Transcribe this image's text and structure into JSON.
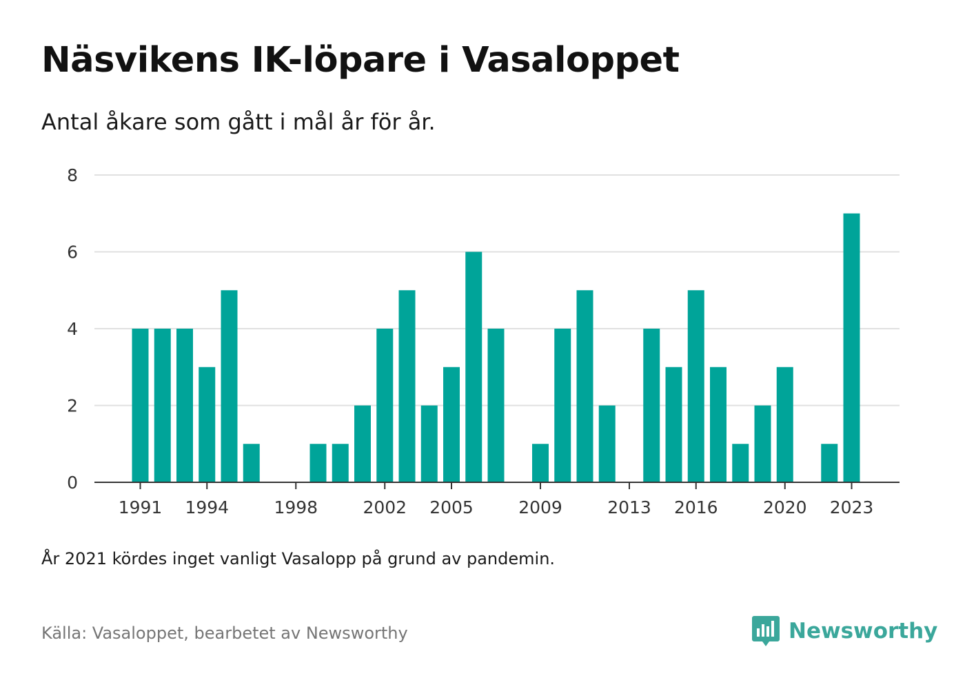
{
  "title": "Näsvikens IK-löpare i Vasaloppet",
  "subtitle": "Antal åkare som gått i mål år för år.",
  "footnote": "År 2021 kördes inget vanligt Vasalopp på grund av pandemin.",
  "source": "Källa: Vasaloppet, bearbetet av Newsworthy",
  "brand": {
    "name": "Newsworthy",
    "icon": "newsworthy-logo-icon"
  },
  "colors": {
    "bar": "#00a499",
    "grid": "#e0e0e0",
    "axis": "#333333",
    "brand": "#3ba79b"
  },
  "chart_data": {
    "type": "bar",
    "categories": [
      "1991",
      "1992",
      "1993",
      "1994",
      "1995",
      "1996",
      "1997",
      "1998",
      "1999",
      "2000",
      "2001",
      "2002",
      "2003",
      "2004",
      "2005",
      "2006",
      "2007",
      "2008",
      "2009",
      "2010",
      "2011",
      "2012",
      "2013",
      "2014",
      "2015",
      "2016",
      "2017",
      "2018",
      "2019",
      "2020",
      "2021",
      "2022",
      "2023"
    ],
    "values": [
      4,
      4,
      4,
      3,
      5,
      1,
      0,
      0,
      1,
      1,
      2,
      4,
      5,
      2,
      3,
      6,
      4,
      0,
      1,
      4,
      5,
      2,
      0,
      4,
      3,
      5,
      3,
      1,
      2,
      3,
      0,
      1,
      7
    ],
    "x_tick_labels": [
      "1991",
      "1994",
      "1998",
      "2002",
      "2005",
      "2009",
      "2013",
      "2016",
      "2020",
      "2023"
    ],
    "y_ticks": [
      0,
      2,
      4,
      6,
      8
    ],
    "ylim": [
      0,
      8
    ],
    "xlabel": "",
    "ylabel": "",
    "grid": true,
    "legend": "none"
  }
}
